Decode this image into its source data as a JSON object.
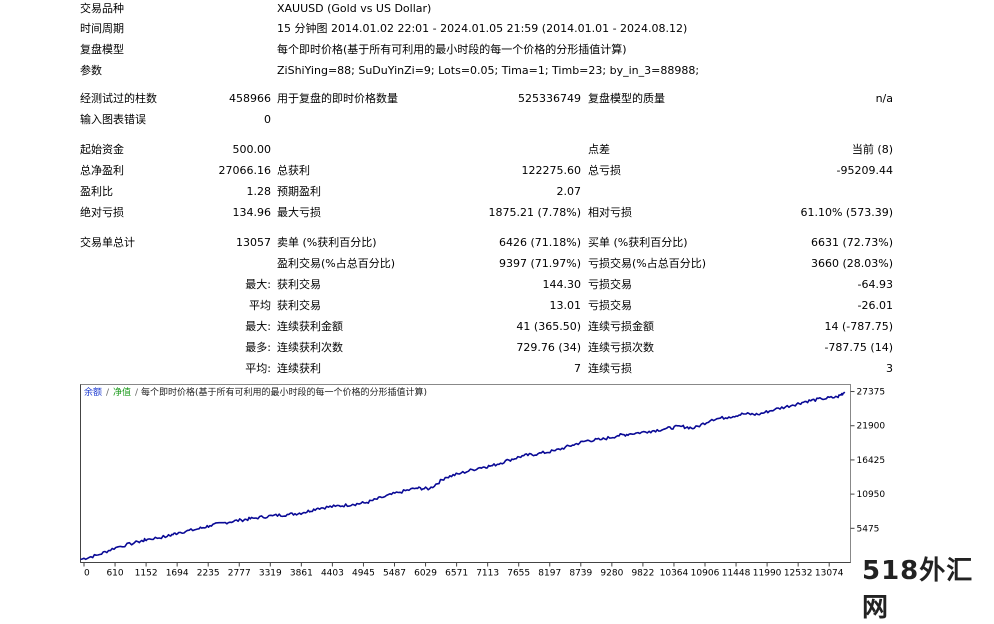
{
  "header_rows": [
    {
      "label": "交易品种",
      "value": "XAUUSD (Gold vs US Dollar)"
    },
    {
      "label": "时间周期",
      "value": "15 分钟图 2014.01.02 22:01 - 2024.01.05 21:59 (2014.01.01 - 2024.08.12)"
    },
    {
      "label": "复盘模型",
      "value": "每个即时价格(基于所有可利用的最小时段的每一个价格的分形插值计算)"
    },
    {
      "label": "参数",
      "value": "ZiShiYing=88; SuDuYinZi=9; Lots=0.05; Tima=1; Timb=23; by_in_3=88988;"
    }
  ],
  "stats": {
    "bars_label": "经测试过的柱数",
    "bars": "458966",
    "ticks_label": "用于复盘的即时价格数量",
    "ticks": "525336749",
    "quality_label": "复盘模型的质量",
    "quality": "n/a",
    "errors_label": "输入图表错误",
    "errors": "0",
    "deposit_label": "起始资金",
    "deposit": "500.00",
    "spread_label": "点差",
    "spread": "当前 (8)",
    "net_label": "总净盈利",
    "net": "27066.16",
    "gross_profit_label": "总获利",
    "gross_profit": "122275.60",
    "gross_loss_label": "总亏损",
    "gross_loss": "-95209.44",
    "pf_label": "盈利比",
    "pf": "1.28",
    "expected_label": "预期盈利",
    "expected": "2.07",
    "abs_dd_label": "绝对亏损",
    "abs_dd": "134.96",
    "max_dd_label": "最大亏损",
    "max_dd": "1875.21 (7.78%)",
    "rel_dd_label": "相对亏损",
    "rel_dd": "61.10% (573.39)",
    "trades_label": "交易单总计",
    "trades": "13057",
    "short_label": "卖单 (%获利百分比)",
    "short": "6426 (71.18%)",
    "long_label": "买单 (%获利百分比)",
    "long": "6631 (72.73%)",
    "profit_trades_label": "盈利交易(%占总百分比)",
    "profit_trades": "9397 (71.97%)",
    "loss_trades_label": "亏损交易(%占总百分比)",
    "loss_trades": "3660 (28.03%)",
    "max_label": "最大:",
    "largest_profit_label": "获利交易",
    "largest_profit": "144.30",
    "largest_loss_label": "亏损交易",
    "largest_loss": "-64.93",
    "avg_label": "平均",
    "avg_profit_label": "获利交易",
    "avg_profit": "13.01",
    "avg_loss_label": "亏损交易",
    "avg_loss": "-26.01",
    "max2_label": "最大:",
    "max_consec_wins_label": "连续获利金额",
    "max_consec_wins": "41 (365.50)",
    "max_consec_losses_label": "连续亏损金额",
    "max_consec_losses": "14 (-787.75)",
    "most_label": "最多:",
    "max_consec_profit_label": "连续获利次数",
    "max_consec_profit": "729.76 (34)",
    "max_consec_loss_label": "连续亏损次数",
    "max_consec_loss": "-787.75 (14)",
    "avg2_label": "平均:",
    "avg_consec_wins_label": "连续获利",
    "avg_consec_wins": "7",
    "avg_consec_losses_label": "连续亏损",
    "avg_consec_losses": "3"
  },
  "chart_data": {
    "type": "line",
    "legend_balance": "余额",
    "legend_equity": "净值",
    "legend_model": "每个即时价格(基于所有可利用的最小时段的每一个价格的分形插值计算)",
    "y_ticks": [
      "27375",
      "21900",
      "16425",
      "10950",
      "5475"
    ],
    "x_ticks": [
      "0",
      "610",
      "1152",
      "1694",
      "2235",
      "2777",
      "3319",
      "3861",
      "4403",
      "4945",
      "5487",
      "6029",
      "6571",
      "7113",
      "7655",
      "8197",
      "8739",
      "9280",
      "9822",
      "10364",
      "10906",
      "11448",
      "11990",
      "12532",
      "13074"
    ],
    "ylim": [
      0,
      28500
    ],
    "xlim": [
      0,
      13300
    ],
    "series": [
      {
        "values_x": [
          0,
          300,
          610,
          1000,
          1152,
          1500,
          1694,
          2000,
          2235,
          2500,
          2777,
          3000,
          3319,
          3600,
          3861,
          4100,
          4403,
          4700,
          4945,
          5200,
          5487,
          5800,
          6029,
          6300,
          6571,
          6900,
          7113,
          7400,
          7655,
          7900,
          8197,
          8500,
          8739,
          9000,
          9280,
          9500,
          9822,
          10100,
          10364,
          10600,
          10906,
          11200,
          11448,
          11700,
          11990,
          12300,
          12532,
          12800,
          13074,
          13200
        ],
        "values_y": [
          500,
          1200,
          2400,
          3300,
          3700,
          4200,
          4800,
          5300,
          5900,
          6400,
          6800,
          7100,
          7500,
          7700,
          8000,
          8700,
          9000,
          9300,
          9600,
          10400,
          11200,
          11900,
          11800,
          13600,
          14300,
          15200,
          15500,
          16400,
          17100,
          17400,
          17900,
          18800,
          19500,
          19700,
          20300,
          20600,
          21000,
          21400,
          21800,
          21500,
          22900,
          23300,
          23800,
          23700,
          24500,
          25200,
          25800,
          26200,
          26500,
          27300
        ]
      }
    ]
  },
  "watermark": "518外汇网",
  "colors": {
    "balance_line": "#0a0a96",
    "legend_balance": "#1d3bd0",
    "legend_equity": "#1a9a1a"
  }
}
